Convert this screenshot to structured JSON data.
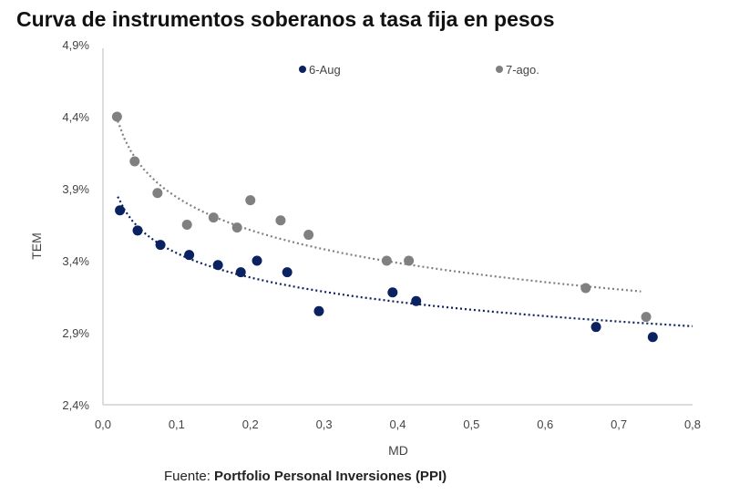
{
  "chart_data": {
    "type": "scatter",
    "title": "Curva de instrumentos soberanos a tasa fija en pesos",
    "xlabel": "MD",
    "ylabel": "TEM",
    "xlim": [
      0,
      0.8
    ],
    "ylim": [
      2.4,
      4.9
    ],
    "xticks": [
      "0,0",
      "0,1",
      "0,2",
      "0,3",
      "0,4",
      "0,5",
      "0,6",
      "0,7",
      "0,8"
    ],
    "yticks": [
      "2,4%",
      "2,9%",
      "3,4%",
      "3,9%",
      "4,4%",
      "4,9%"
    ],
    "legend_position": "top",
    "series": [
      {
        "name": "6-Aug",
        "color": "#0b2260",
        "trendline": "logarithmic",
        "x": [
          0.023,
          0.047,
          0.078,
          0.117,
          0.156,
          0.187,
          0.209,
          0.25,
          0.293,
          0.393,
          0.425,
          0.669,
          0.746
        ],
        "y": [
          3.75,
          3.61,
          3.51,
          3.44,
          3.37,
          3.32,
          3.4,
          3.32,
          3.05,
          3.18,
          3.12,
          2.94,
          2.87
        ]
      },
      {
        "name": "7-ago.",
        "color": "#808080",
        "trendline": "logarithmic",
        "x": [
          0.019,
          0.043,
          0.074,
          0.114,
          0.15,
          0.182,
          0.2,
          0.241,
          0.279,
          0.385,
          0.415,
          0.655,
          0.737
        ],
        "y": [
          4.4,
          4.09,
          3.87,
          3.65,
          3.7,
          3.63,
          3.82,
          3.68,
          3.58,
          3.4,
          3.4,
          3.21,
          3.01
        ]
      }
    ]
  },
  "source": {
    "label": "Fuente:",
    "value": "Portfolio Personal Inversiones (PPI)"
  }
}
